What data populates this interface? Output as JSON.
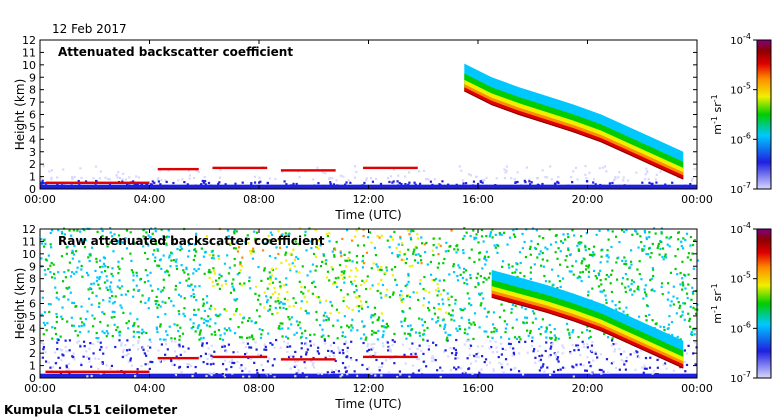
{
  "date": "12 Feb 2017",
  "footer": "Kumpula CL51 ceilometer",
  "colors": {
    "low": "#d8d8ff",
    "blue": "#1f1fe0",
    "cyan": "#00c8ff",
    "green": "#00cc00",
    "yellow": "#f0f000",
    "orange": "#ff8c00",
    "red": "#e00000",
    "darkred": "#8b0000",
    "purple": "#800080"
  },
  "chart_data": [
    {
      "type": "heatmap",
      "title": "Attenuated backscatter coefficient",
      "xlabel": "Time (UTC)",
      "ylabel": "Height (km)",
      "xlim": [
        "00:00",
        "24:00"
      ],
      "ylim": [
        0,
        12
      ],
      "x_ticks": [
        "00:00",
        "04:00",
        "08:00",
        "12:00",
        "16:00",
        "20:00",
        "00:00"
      ],
      "y_ticks": [
        "0",
        "1",
        "2",
        "3",
        "4",
        "5",
        "6",
        "7",
        "8",
        "9",
        "10",
        "11",
        "12"
      ],
      "colorbar": {
        "label": "m-1 sr-1",
        "scale": "log",
        "range": [
          1e-07,
          0.0001
        ],
        "tick_labels": [
          {
            "base": "10",
            "exp": "-4"
          },
          {
            "base": "10",
            "exp": "-5"
          },
          {
            "base": "10",
            "exp": "-6"
          },
          {
            "base": "10",
            "exp": "-7"
          }
        ]
      },
      "cloud_base_km": [
        {
          "t": 15.5,
          "h": 7.9
        },
        {
          "t": 16.5,
          "h": 6.8
        },
        {
          "t": 17.5,
          "h": 6.0
        },
        {
          "t": 18.5,
          "h": 5.3
        },
        {
          "t": 19.5,
          "h": 4.6
        },
        {
          "t": 20.5,
          "h": 3.8
        },
        {
          "t": 21.5,
          "h": 2.8
        },
        {
          "t": 22.5,
          "h": 1.8
        },
        {
          "t": 23.5,
          "h": 0.8
        }
      ],
      "low_cloud_segments_km": [
        {
          "t0": 6.3,
          "t1": 8.3,
          "h": 1.7
        },
        {
          "t0": 8.8,
          "t1": 10.8,
          "h": 1.5
        },
        {
          "t0": 11.8,
          "t1": 13.8,
          "h": 1.7
        },
        {
          "t0": 4.3,
          "t1": 5.8,
          "h": 1.6
        },
        {
          "t0": 0.2,
          "t1": 4.0,
          "h": 0.5
        }
      ]
    },
    {
      "type": "heatmap",
      "title": "Raw attenuated backscatter coefficient",
      "xlabel": "Time (UTC)",
      "ylabel": "Height (km)",
      "xlim": [
        "00:00",
        "24:00"
      ],
      "ylim": [
        0,
        12
      ],
      "x_ticks": [
        "00:00",
        "04:00",
        "08:00",
        "12:00",
        "16:00",
        "20:00",
        "00:00"
      ],
      "y_ticks": [
        "0",
        "1",
        "2",
        "3",
        "4",
        "5",
        "6",
        "7",
        "8",
        "9",
        "10",
        "11",
        "12"
      ],
      "colorbar": {
        "label": "m-1 sr-1",
        "scale": "log",
        "range": [
          1e-07,
          0.0001
        ],
        "tick_labels": [
          {
            "base": "10",
            "exp": "-4"
          },
          {
            "base": "10",
            "exp": "-5"
          },
          {
            "base": "10",
            "exp": "-6"
          },
          {
            "base": "10",
            "exp": "-7"
          }
        ]
      },
      "cloud_base_km": [
        {
          "t": 16.5,
          "h": 6.5
        },
        {
          "t": 17.5,
          "h": 5.9
        },
        {
          "t": 18.5,
          "h": 5.3
        },
        {
          "t": 19.5,
          "h": 4.6
        },
        {
          "t": 20.5,
          "h": 3.8
        },
        {
          "t": 21.5,
          "h": 2.8
        },
        {
          "t": 22.5,
          "h": 1.8
        },
        {
          "t": 23.5,
          "h": 0.8
        }
      ],
      "low_cloud_segments_km": [
        {
          "t0": 6.3,
          "t1": 8.3,
          "h": 1.7
        },
        {
          "t0": 8.8,
          "t1": 10.8,
          "h": 1.5
        },
        {
          "t0": 11.8,
          "t1": 13.8,
          "h": 1.7
        },
        {
          "t0": 4.3,
          "t1": 5.8,
          "h": 1.6
        },
        {
          "t0": 0.2,
          "t1": 4.0,
          "h": 0.5
        }
      ]
    }
  ]
}
